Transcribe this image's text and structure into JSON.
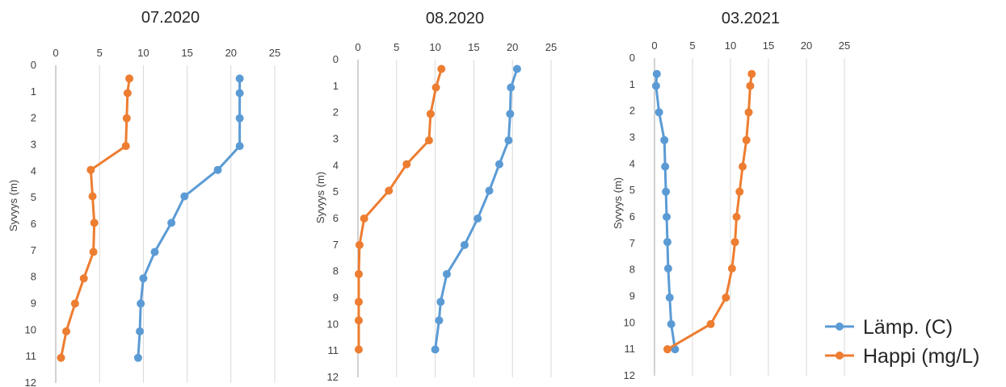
{
  "colors": {
    "temp": "#5B9BD5",
    "oxygen": "#ED7D31",
    "grid": "#D9D9D9",
    "axis": "#A6A6A6"
  },
  "legend": {
    "temp_label": "Lämp. (C)",
    "oxygen_label": "Happi (mg/L)",
    "placement": "right"
  },
  "chart_data": [
    {
      "type": "line",
      "title": "07.2020",
      "ylabel": "Syvyys (m)",
      "xlabel": "",
      "xlim": [
        0,
        25
      ],
      "ylim": [
        0,
        12
      ],
      "y_inverted": true,
      "x_axis_position": "top",
      "xticks": [
        0,
        5,
        10,
        15,
        20,
        25
      ],
      "yticks": [
        0,
        1,
        2,
        3,
        4,
        5,
        6,
        7,
        8,
        9,
        10,
        11,
        12
      ],
      "grid": "vertical",
      "series": [
        {
          "name": "Lämp. (C)",
          "points": [
            [
              21,
              0.5
            ],
            [
              21,
              1.05
            ],
            [
              21,
              2.0
            ],
            [
              21,
              3.05
            ],
            [
              18.5,
              3.95
            ],
            [
              14.7,
              4.95
            ],
            [
              13.2,
              5.95
            ],
            [
              11.3,
              7.05
            ],
            [
              10,
              8.05
            ],
            [
              9.7,
              9.0
            ],
            [
              9.6,
              10.05
            ],
            [
              9.4,
              11.05
            ]
          ]
        },
        {
          "name": "Happi (mg/L)",
          "points": [
            [
              8.4,
              0.5
            ],
            [
              8.2,
              1.05
            ],
            [
              8.1,
              2.0
            ],
            [
              8.0,
              3.05
            ],
            [
              4.0,
              3.95
            ],
            [
              4.2,
              4.95
            ],
            [
              4.4,
              5.95
            ],
            [
              4.3,
              7.05
            ],
            [
              3.2,
              8.05
            ],
            [
              2.2,
              9.0
            ],
            [
              1.2,
              10.05
            ],
            [
              0.6,
              11.05
            ]
          ]
        }
      ]
    },
    {
      "type": "line",
      "title": "08.2020",
      "ylabel": "Syvyys (m)",
      "xlabel": "",
      "xlim": [
        0,
        25
      ],
      "ylim": [
        0,
        12
      ],
      "y_inverted": true,
      "x_axis_position": "top",
      "xticks": [
        0,
        5,
        10,
        15,
        20,
        25
      ],
      "yticks": [
        0,
        1,
        2,
        3,
        4,
        5,
        6,
        7,
        8,
        9,
        10,
        11,
        12
      ],
      "grid": "vertical",
      "series": [
        {
          "name": "Lämp. (C)",
          "points": [
            [
              20.6,
              0.35
            ],
            [
              19.8,
              1.05
            ],
            [
              19.7,
              2.05
            ],
            [
              19.5,
              3.05
            ],
            [
              18.3,
              3.95
            ],
            [
              17,
              4.95
            ],
            [
              15.5,
              6.0
            ],
            [
              13.8,
              7.0
            ],
            [
              11.5,
              8.1
            ],
            [
              10.7,
              9.15
            ],
            [
              10.5,
              9.85
            ],
            [
              10.0,
              10.95
            ]
          ]
        },
        {
          "name": "Happi (mg/L)",
          "points": [
            [
              10.8,
              0.35
            ],
            [
              10.1,
              1.05
            ],
            [
              9.4,
              2.05
            ],
            [
              9.2,
              3.05
            ],
            [
              6.3,
              3.95
            ],
            [
              4.0,
              4.95
            ],
            [
              0.8,
              6.0
            ],
            [
              0.2,
              7.0
            ],
            [
              0.1,
              8.1
            ],
            [
              0.1,
              9.15
            ],
            [
              0.1,
              9.85
            ],
            [
              0.1,
              10.95
            ]
          ]
        }
      ]
    },
    {
      "type": "line",
      "title": "03.2021",
      "ylabel": "Syvyys (m)",
      "xlabel": "",
      "xlim": [
        0,
        25
      ],
      "ylim": [
        0,
        12
      ],
      "y_inverted": true,
      "x_axis_position": "top",
      "xticks": [
        0,
        5,
        10,
        15,
        20,
        25
      ],
      "yticks": [
        0,
        1,
        2,
        3,
        4,
        5,
        6,
        7,
        8,
        9,
        10,
        11,
        12
      ],
      "grid": "vertical",
      "series": [
        {
          "name": "Lämp. (C)",
          "points": [
            [
              0.3,
              0.6
            ],
            [
              0.2,
              1.05
            ],
            [
              0.6,
              2.05
            ],
            [
              1.3,
              3.1
            ],
            [
              1.4,
              4.1
            ],
            [
              1.5,
              5.05
            ],
            [
              1.6,
              6.0
            ],
            [
              1.7,
              6.95
            ],
            [
              1.8,
              7.95
            ],
            [
              2.0,
              9.05
            ],
            [
              2.2,
              10.05
            ],
            [
              2.7,
              11.0
            ]
          ]
        },
        {
          "name": "Happi (mg/L)",
          "points": [
            [
              12.8,
              0.6
            ],
            [
              12.6,
              1.05
            ],
            [
              12.4,
              2.05
            ],
            [
              12.1,
              3.1
            ],
            [
              11.6,
              4.1
            ],
            [
              11.2,
              5.05
            ],
            [
              10.8,
              6.0
            ],
            [
              10.6,
              6.95
            ],
            [
              10.2,
              7.95
            ],
            [
              9.4,
              9.05
            ],
            [
              7.4,
              10.05
            ],
            [
              1.7,
              11.0
            ]
          ]
        }
      ]
    }
  ]
}
